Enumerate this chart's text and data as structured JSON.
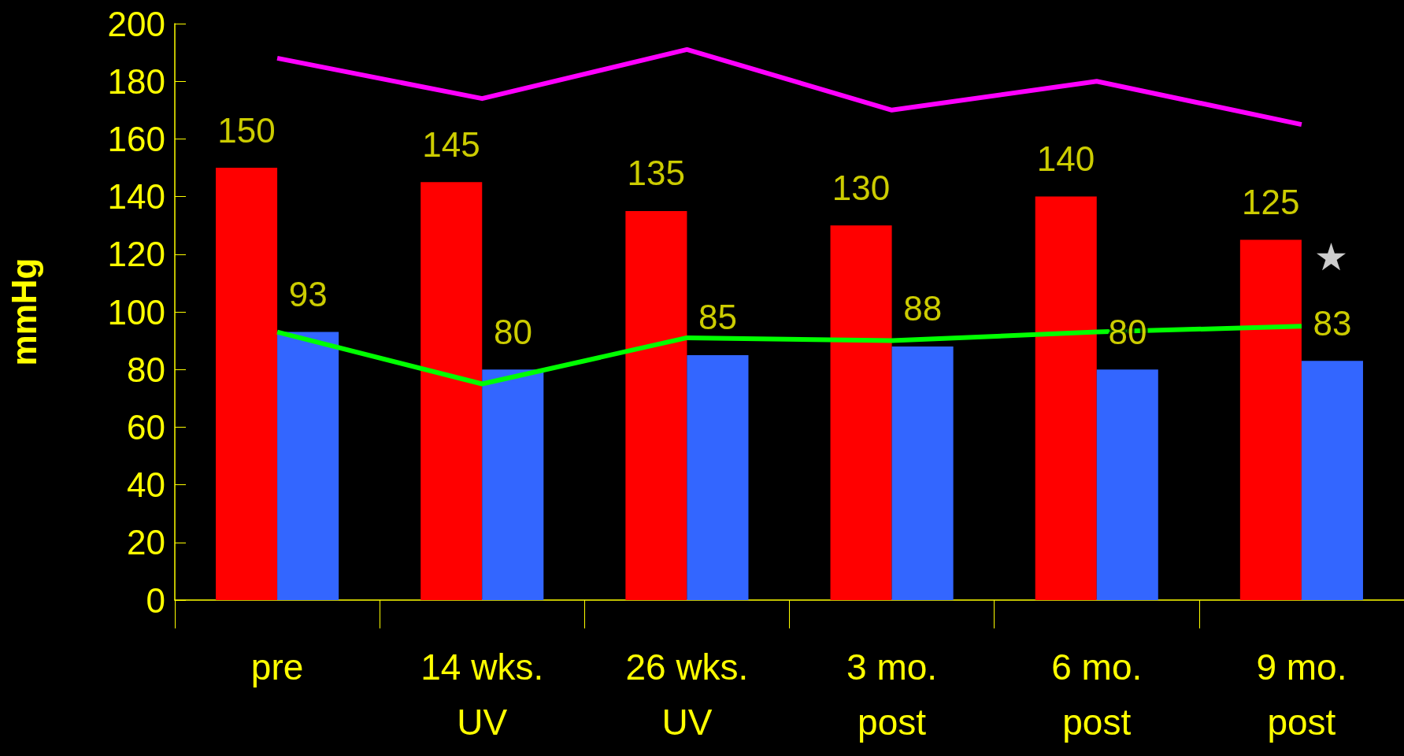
{
  "chart_data": {
    "type": "bar",
    "ylabel": "mmHg",
    "categories": [
      "pre",
      "14 wks.\nUV",
      "26 wks.\nUV",
      "3 mo.\npost",
      "6 mo.\npost",
      "9 mo.\npost"
    ],
    "series": [
      {
        "color": "#ff0000",
        "values": [
          150,
          145,
          135,
          130,
          140,
          125
        ],
        "value_labels": [
          "150",
          "145",
          "135",
          "130",
          "140",
          "125"
        ]
      },
      {
        "color": "#3366ff",
        "values": [
          93,
          80,
          85,
          88,
          80,
          83
        ],
        "value_labels": [
          "93",
          "80",
          "85",
          "88",
          "80",
          "83"
        ]
      },
      {
        "type": "line",
        "color": "#ff00ff",
        "values": [
          188,
          174,
          191,
          170,
          180,
          165
        ]
      },
      {
        "type": "line",
        "color": "#00ff00",
        "values": [
          93,
          75,
          91,
          90,
          93,
          95
        ]
      }
    ],
    "annotations": [
      {
        "text": "★",
        "x": "9 mo.\npost",
        "y": 119
      }
    ],
    "ylim": [
      0,
      200
    ],
    "yticks": [
      0,
      20,
      40,
      60,
      80,
      100,
      120,
      140,
      160,
      180,
      200
    ],
    "grid": false,
    "marker": "none",
    "line_style": "solid"
  }
}
